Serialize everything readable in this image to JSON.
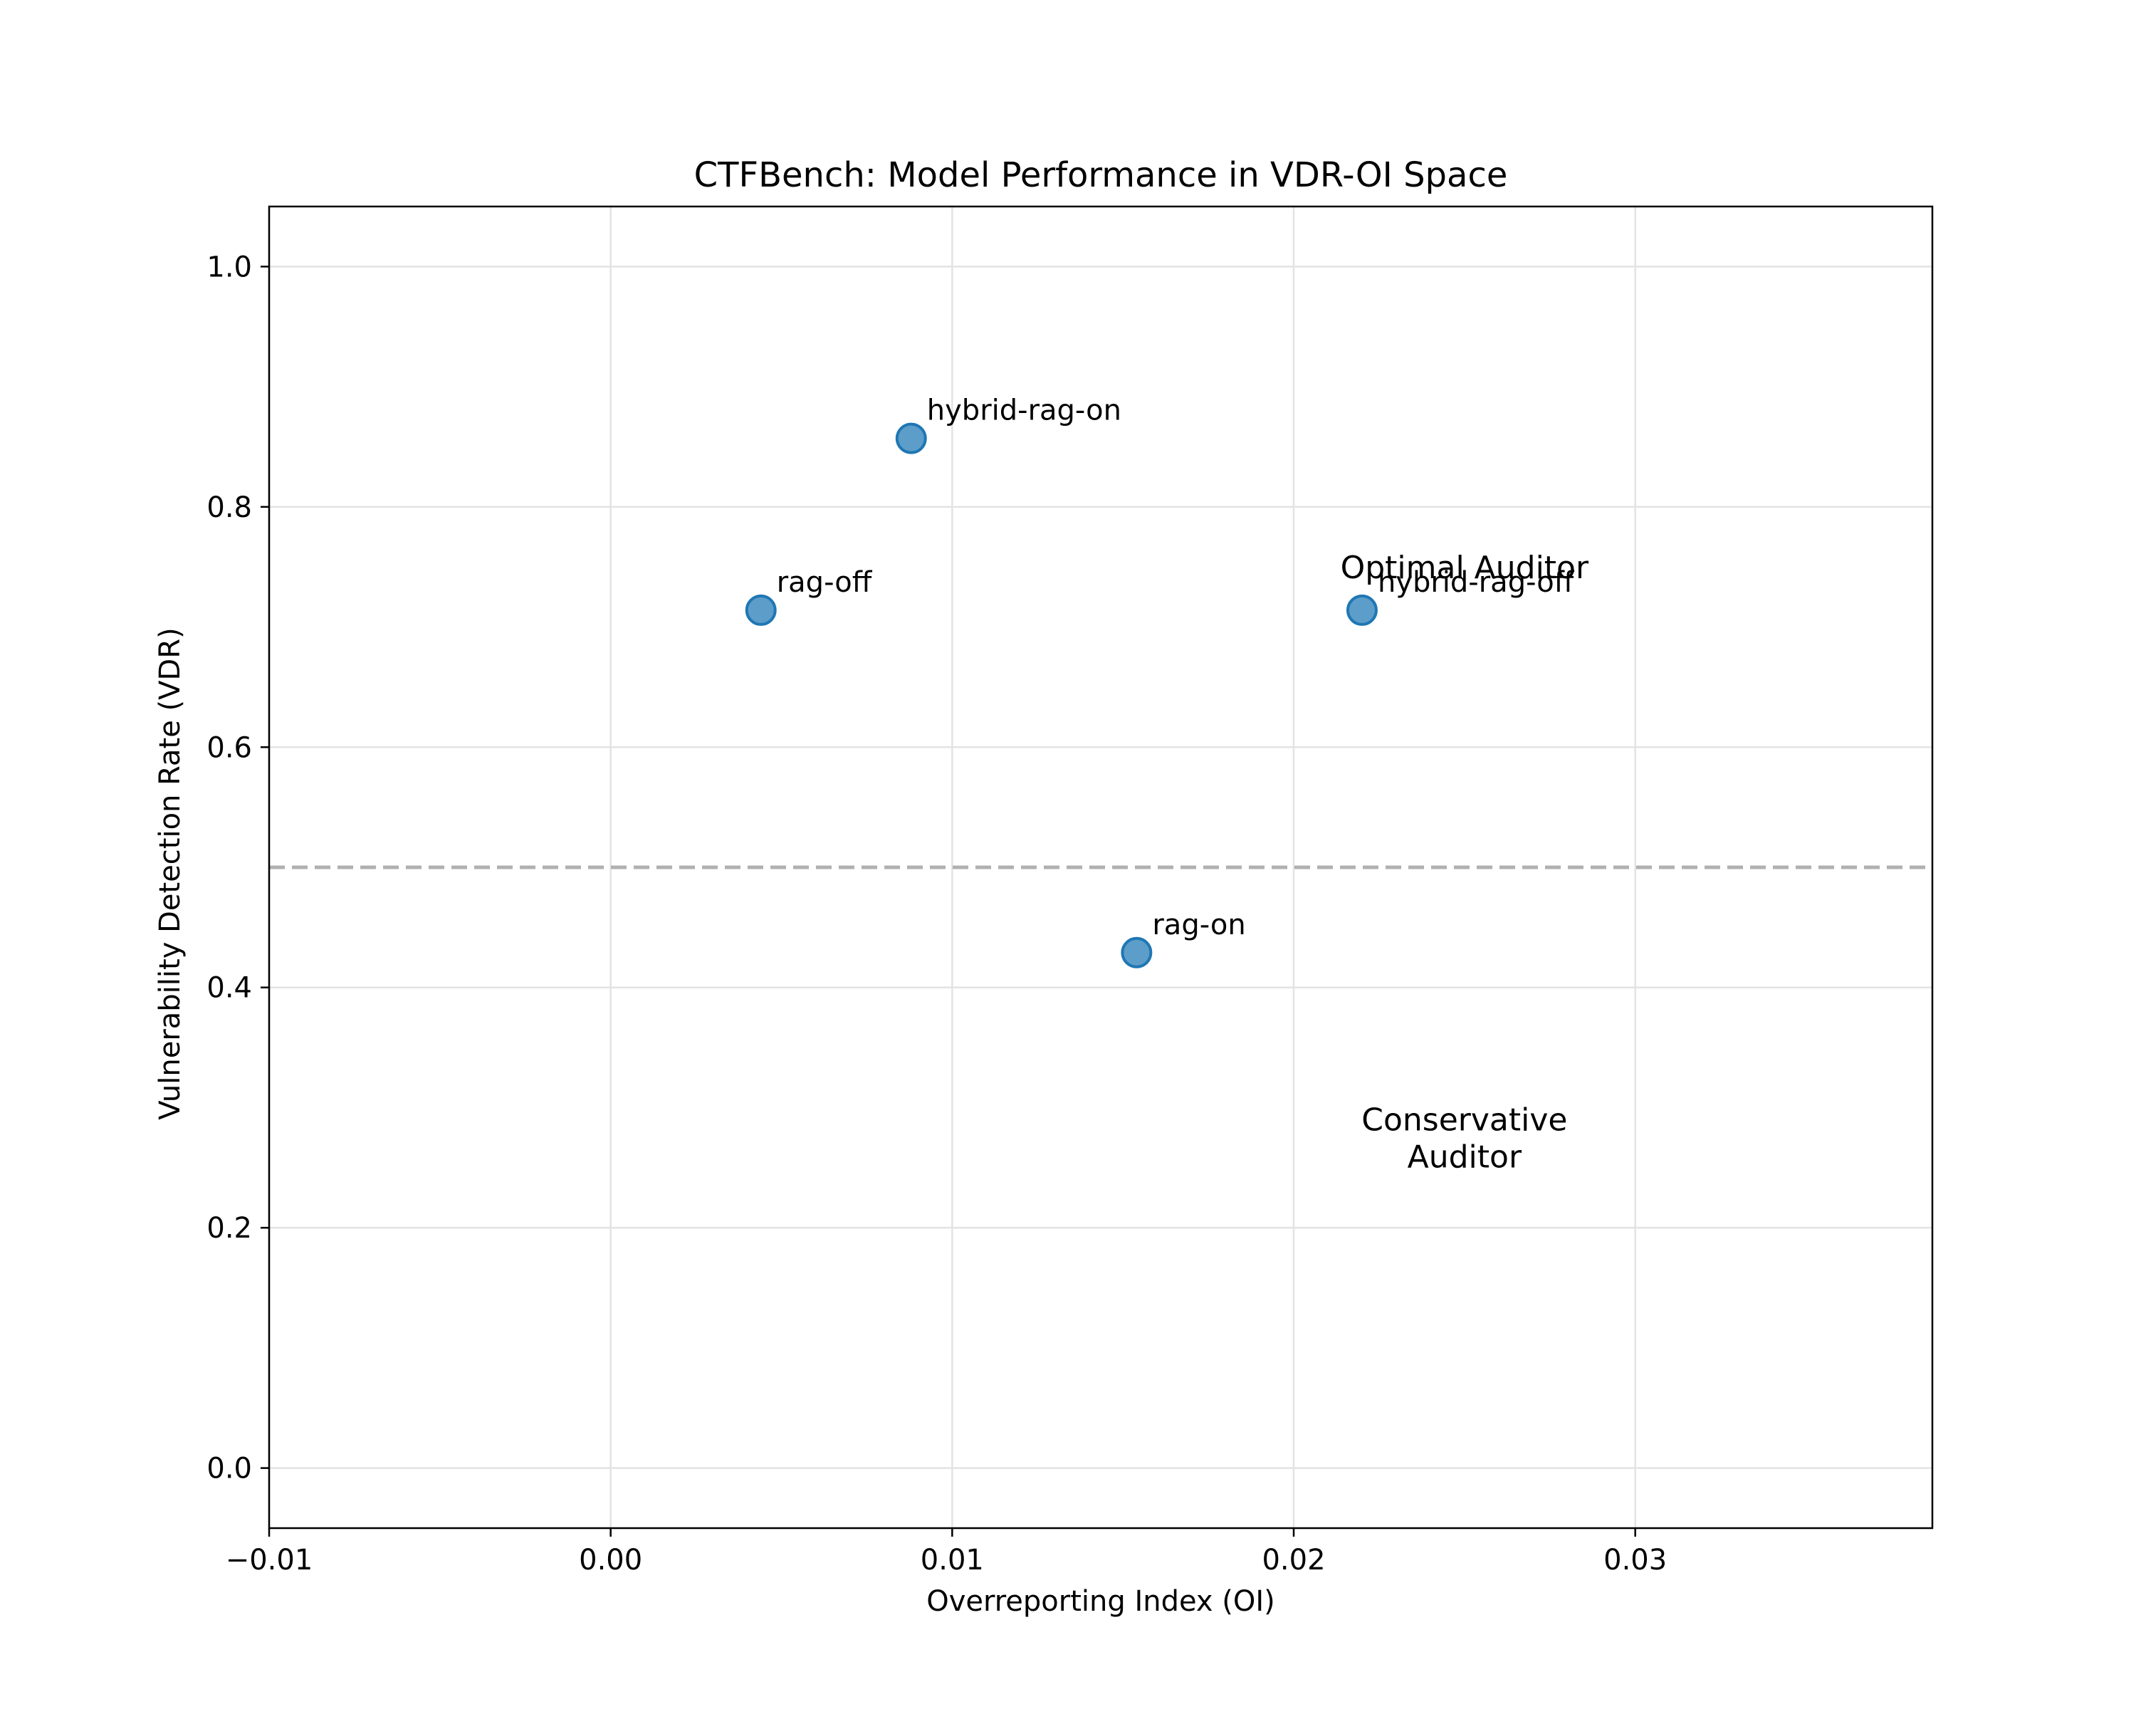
{
  "chart_data": {
    "type": "scatter",
    "title": "CTFBench: Model Performance in VDR-OI Space",
    "xlabel": "Overreporting Index (OI)",
    "ylabel": "Vulnerability Detection Rate (VDR)",
    "xlim": [
      -0.01,
      0.0387
    ],
    "ylim": [
      -0.05,
      1.05
    ],
    "x_ticks": [
      -0.01,
      0.0,
      0.01,
      0.02,
      0.03
    ],
    "x_tick_labels": [
      "−0.01",
      "0.00",
      "0.01",
      "0.02",
      "0.03"
    ],
    "y_ticks": [
      0.0,
      0.2,
      0.4,
      0.6,
      0.8,
      1.0
    ],
    "y_tick_labels": [
      "0.0",
      "0.2",
      "0.4",
      "0.6",
      "0.8",
      "1.0"
    ],
    "grid": true,
    "marker_color": "#1f77b4",
    "reference_line": {
      "y": 0.5,
      "style": "dashed",
      "color": "#b0b0b0"
    },
    "points": [
      {
        "label": "hybrid-rag-on",
        "x": 0.0088,
        "y": 0.857
      },
      {
        "label": "rag-off",
        "x": 0.0044,
        "y": 0.714
      },
      {
        "label": "hybrid-rag-off",
        "x": 0.022,
        "y": 0.714
      },
      {
        "label": "rag-on",
        "x": 0.0154,
        "y": 0.429
      }
    ],
    "annotations": [
      {
        "lines": [
          "Optimal Auditor"
        ],
        "x": 0.025,
        "y": 0.75
      },
      {
        "lines": [
          "Conservative",
          "Auditor"
        ],
        "x": 0.025,
        "y": 0.275
      }
    ]
  }
}
